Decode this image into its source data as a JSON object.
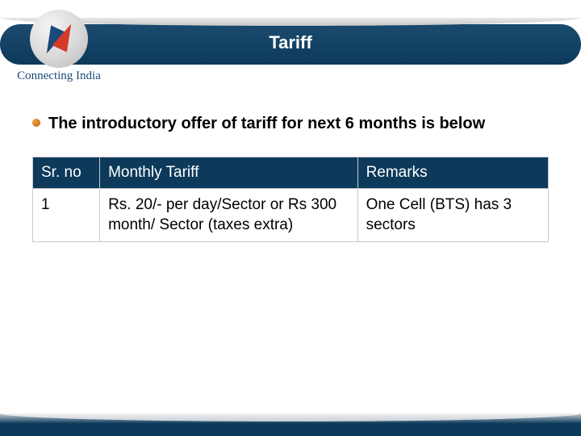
{
  "logo": {
    "tagline": "Connecting India"
  },
  "title": "Tariff",
  "bullet": "The introductory offer of tariff for next 6 months is below",
  "table": {
    "columns": [
      "Sr. no",
      "Monthly Tariff",
      "Remarks"
    ],
    "rows": [
      {
        "sr": "1",
        "tariff": "Rs. 20/- per day/Sector or Rs 300 month/ Sector (taxes extra)",
        "remarks": "One Cell (BTS) has 3 sectors"
      }
    ]
  },
  "colors": {
    "band": "#0d3a5a",
    "header_text": "#ffffff",
    "body_text": "#000000",
    "table_border": "#c8c8d0",
    "bullet": "#c06010"
  }
}
